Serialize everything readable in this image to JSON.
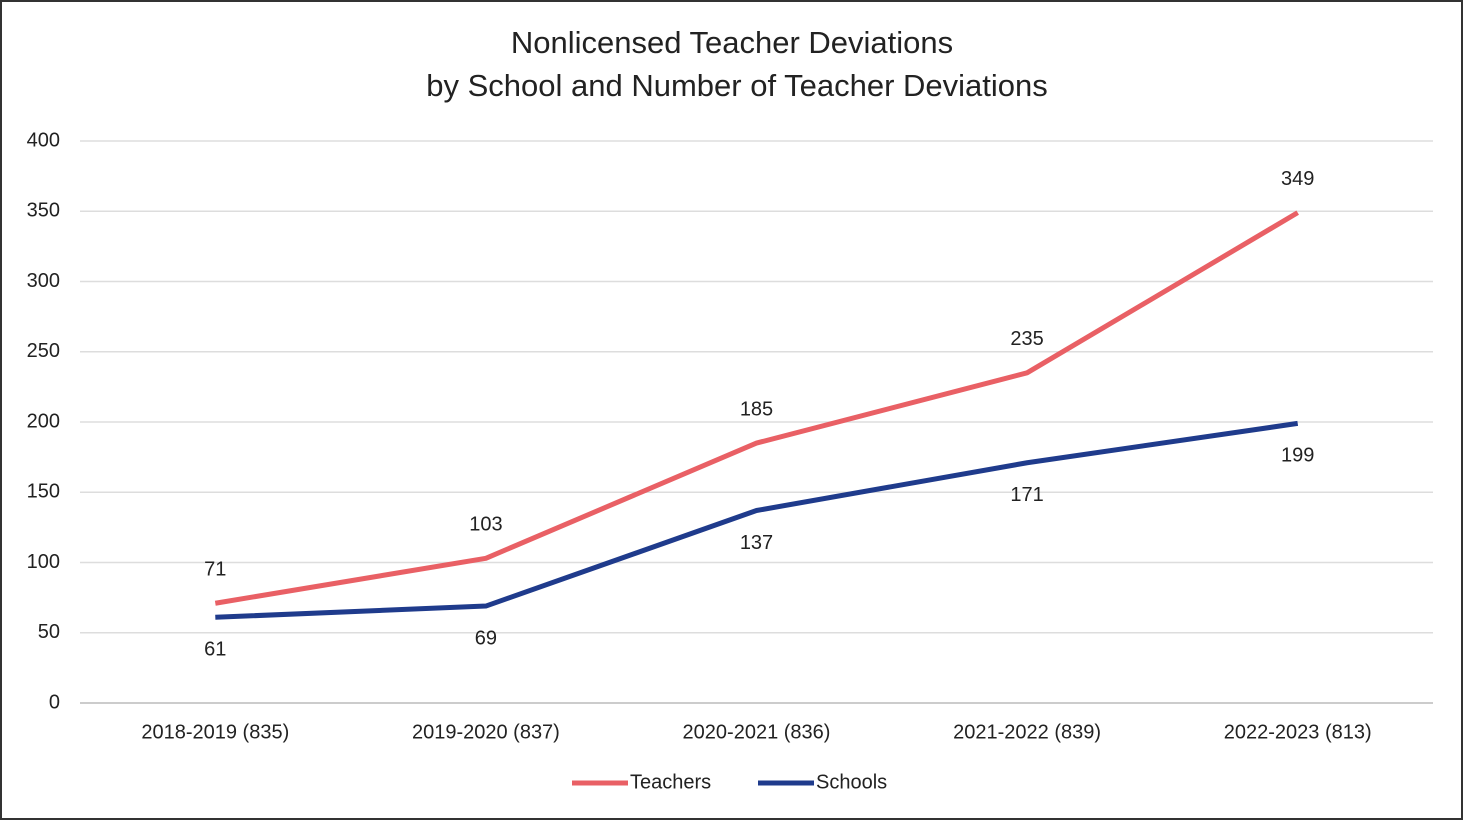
{
  "chart_data": {
    "type": "line",
    "title": [
      "Nonlicensed Teacher Deviations",
      "by School and Number of Teacher Deviations"
    ],
    "categories": [
      "2018-2019 (835)",
      "2019-2020 (837)",
      "2020-2021 (836)",
      "2021-2022 (839)",
      "2022-2023 (813)"
    ],
    "series": [
      {
        "name": "Teachers",
        "color": "#e96065",
        "values": [
          71,
          103,
          185,
          235,
          349
        ]
      },
      {
        "name": "Schools",
        "color": "#1f3b8c",
        "values": [
          61,
          69,
          137,
          171,
          199
        ]
      }
    ],
    "ylim": [
      0,
      400
    ],
    "yticks": [
      0,
      50,
      100,
      150,
      200,
      250,
      300,
      350,
      400
    ],
    "grid": true,
    "legend": "bottom"
  }
}
